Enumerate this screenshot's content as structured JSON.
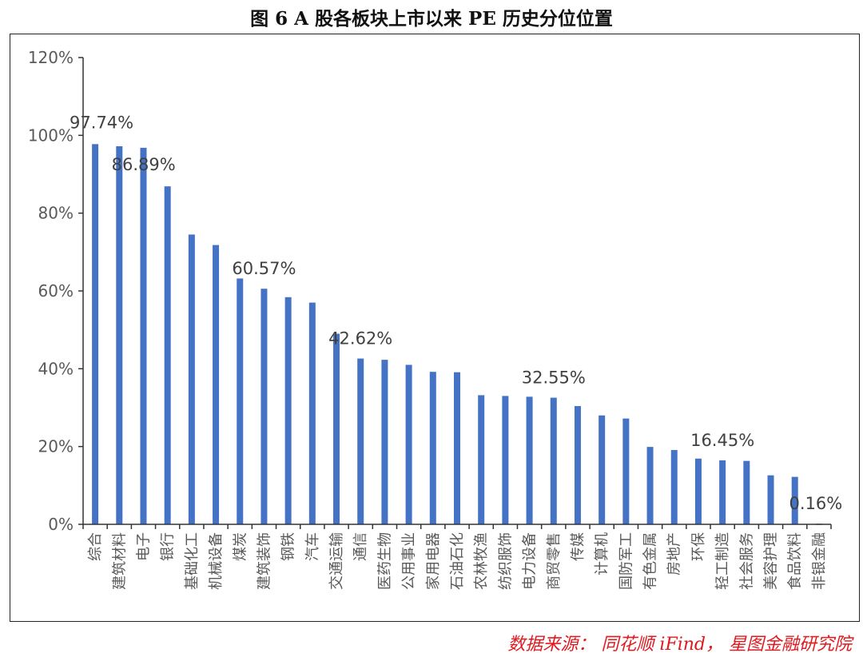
{
  "chart_data": {
    "type": "bar",
    "title": "图 6 A 股各板块上市以来 PE 历史分位位置",
    "categories": [
      "综合",
      "建筑材料",
      "电子",
      "银行",
      "基础化工",
      "机械设备",
      "煤炭",
      "建筑装饰",
      "钢铁",
      "汽车",
      "交通运输",
      "通信",
      "医药生物",
      "公用事业",
      "家用电器",
      "石油石化",
      "农林牧渔",
      "纺织服饰",
      "电力设备",
      "商贸零售",
      "传媒",
      "计算机",
      "国防军工",
      "有色金属",
      "房地产",
      "环保",
      "轻工制造",
      "社会服务",
      "美容护理",
      "食品饮料",
      "非银金融"
    ],
    "values": [
      97.74,
      97.2,
      96.8,
      86.89,
      74.5,
      71.8,
      63.2,
      60.57,
      58.4,
      57.0,
      49.0,
      42.62,
      42.3,
      41.0,
      39.2,
      39.1,
      33.2,
      33.0,
      32.8,
      32.55,
      30.4,
      28.0,
      27.2,
      19.9,
      19.1,
      16.9,
      16.45,
      16.3,
      12.6,
      12.2,
      0.16
    ],
    "data_labels": [
      {
        "index": 0,
        "text": "97.74%"
      },
      {
        "index": 3,
        "text": "86.89%"
      },
      {
        "index": 7,
        "text": "60.57%"
      },
      {
        "index": 11,
        "text": "42.62%"
      },
      {
        "index": 19,
        "text": "32.55%"
      },
      {
        "index": 26,
        "text": "16.45%"
      },
      {
        "index": 30,
        "text": "0.16%"
      }
    ],
    "ylim": [
      0,
      120
    ],
    "yticks": [
      "0%",
      "20%",
      "40%",
      "60%",
      "80%",
      "100%",
      "120%"
    ],
    "xlabel": "",
    "ylabel": "",
    "grid": false,
    "bar_color": "#4472c4"
  },
  "source": "数据来源： 同花顺 iFind， 星图金融研究院"
}
